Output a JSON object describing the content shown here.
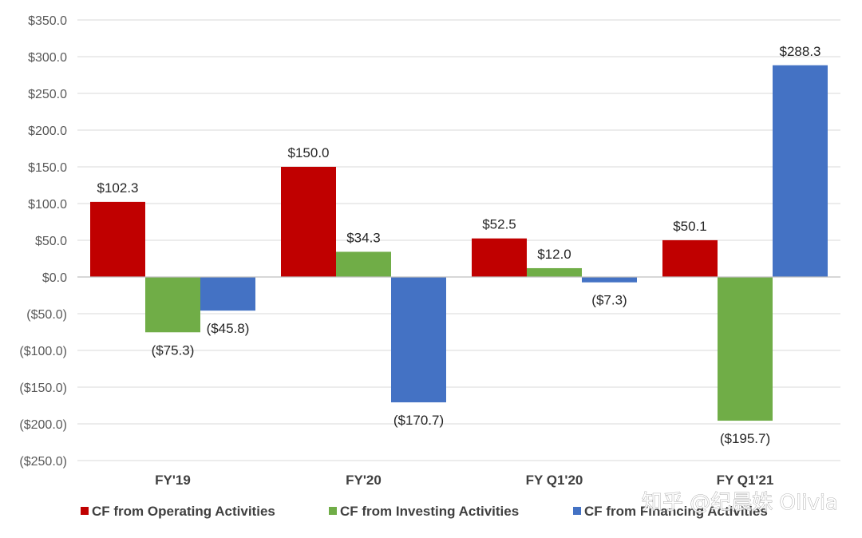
{
  "chart_data": {
    "type": "bar",
    "categories": [
      "FY'19",
      "FY'20",
      "FY Q1'20",
      "FY Q1'21"
    ],
    "series": [
      {
        "name": "CF from Operating Activities",
        "color": "#C00000",
        "values": [
          102.3,
          150.0,
          52.5,
          50.1
        ],
        "labels": [
          "$102.3",
          "$150.0",
          "$52.5",
          "$50.1"
        ]
      },
      {
        "name": "CF from Investing Activities",
        "color": "#70AD47",
        "values": [
          -75.3,
          34.3,
          12.0,
          -195.7
        ],
        "labels": [
          "($75.3)",
          "$34.3",
          "$12.0",
          "($195.7)"
        ]
      },
      {
        "name": "CF from Financing Activities",
        "color": "#4472C4",
        "values": [
          -45.8,
          -170.7,
          -7.3,
          288.3
        ],
        "labels": [
          "($45.8)",
          "($170.7)",
          "($7.3)",
          "$288.3"
        ]
      }
    ],
    "y_ticks": [
      350,
      300,
      250,
      200,
      150,
      100,
      50,
      0,
      -50,
      -100,
      -150,
      -200,
      -250
    ],
    "y_tick_labels": [
      "$350.0",
      "$300.0",
      "$250.0",
      "$200.0",
      "$150.0",
      "$100.0",
      "$50.0",
      "$0.0",
      "($50.0)",
      "($100.0)",
      "($150.0)",
      "($200.0)",
      "($250.0)"
    ],
    "ylim": [
      -250,
      350
    ],
    "grid": true,
    "legend_position": "bottom",
    "title": "",
    "xlabel": "",
    "ylabel": ""
  },
  "watermark": {
    "text": "知乎 @纪晨姝 Olivia"
  }
}
